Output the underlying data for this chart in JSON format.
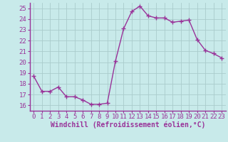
{
  "x": [
    0,
    1,
    2,
    3,
    4,
    5,
    6,
    7,
    8,
    9,
    10,
    11,
    12,
    13,
    14,
    15,
    16,
    17,
    18,
    19,
    20,
    21,
    22,
    23
  ],
  "y": [
    18.7,
    17.3,
    17.3,
    17.7,
    16.8,
    16.8,
    16.5,
    16.1,
    16.1,
    16.2,
    20.1,
    23.1,
    24.7,
    25.2,
    24.3,
    24.1,
    24.1,
    23.7,
    23.8,
    23.9,
    22.1,
    21.1,
    20.8,
    20.4
  ],
  "line_color": "#993399",
  "marker": "+",
  "markersize": 4,
  "linewidth": 1.0,
  "bg_color": "#c8eaea",
  "grid_color": "#aacccc",
  "xlabel": "Windchill (Refroidissement éolien,°C)",
  "xlabel_fontsize": 7,
  "tick_fontsize": 6.5,
  "ylim": [
    15.5,
    25.5
  ],
  "xlim": [
    -0.5,
    23.5
  ],
  "yticks": [
    16,
    17,
    18,
    19,
    20,
    21,
    22,
    23,
    24,
    25
  ],
  "xticks": [
    0,
    1,
    2,
    3,
    4,
    5,
    6,
    7,
    8,
    9,
    10,
    11,
    12,
    13,
    14,
    15,
    16,
    17,
    18,
    19,
    20,
    21,
    22,
    23
  ],
  "spine_color": "#993399",
  "tick_color": "#993399"
}
